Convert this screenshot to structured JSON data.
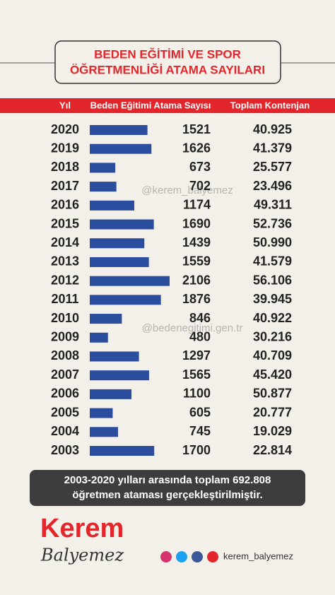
{
  "chart_data": {
    "type": "bar",
    "title": "BEDEN EĞİTİMİ VE SPOR",
    "subtitle": "ÖĞRETMENLİĞİ ATAMA SAYILARI",
    "category_header": "Yıl",
    "categories": [
      "2020",
      "2019",
      "2018",
      "2017",
      "2016",
      "2015",
      "2014",
      "2013",
      "2012",
      "2011",
      "2010",
      "2009",
      "2008",
      "2007",
      "2006",
      "2005",
      "2004",
      "2003"
    ],
    "series": [
      {
        "name": "Beden Eğitimi Atama Sayısı",
        "color": "#2b4d9e",
        "values": [
          1521,
          1626,
          673,
          702,
          1174,
          1690,
          1439,
          1559,
          2106,
          1876,
          846,
          480,
          1297,
          1565,
          1100,
          605,
          745,
          1700
        ]
      }
    ],
    "totals": {
      "name": "Toplam Kontenjan",
      "values": [
        40925,
        41379,
        25577,
        23496,
        49311,
        52736,
        50990,
        41579,
        56106,
        39945,
        40922,
        30216,
        40709,
        45420,
        50877,
        20777,
        19029,
        22814
      ],
      "value_labels": [
        "40.925",
        "41.379",
        "25.577",
        "23.496",
        "49.311",
        "52.736",
        "50.990",
        "41.579",
        "56.106",
        "39.945",
        "40.922",
        "30.216",
        "40.709",
        "45.420",
        "50.877",
        "20.777",
        "19.029",
        "22.814"
      ]
    },
    "watermarks": [
      "@kerem_balyemez",
      "@bedenegitimi.gen.tr"
    ],
    "note": [
      "2003-2020 yılları arasında toplam 692.808",
      "öğretmen ataması gerçekleştirilmiştir."
    ]
  },
  "footer": {
    "brand": "Kerem",
    "brand_script": "Balyemez",
    "handle": "kerem_balyemez"
  }
}
